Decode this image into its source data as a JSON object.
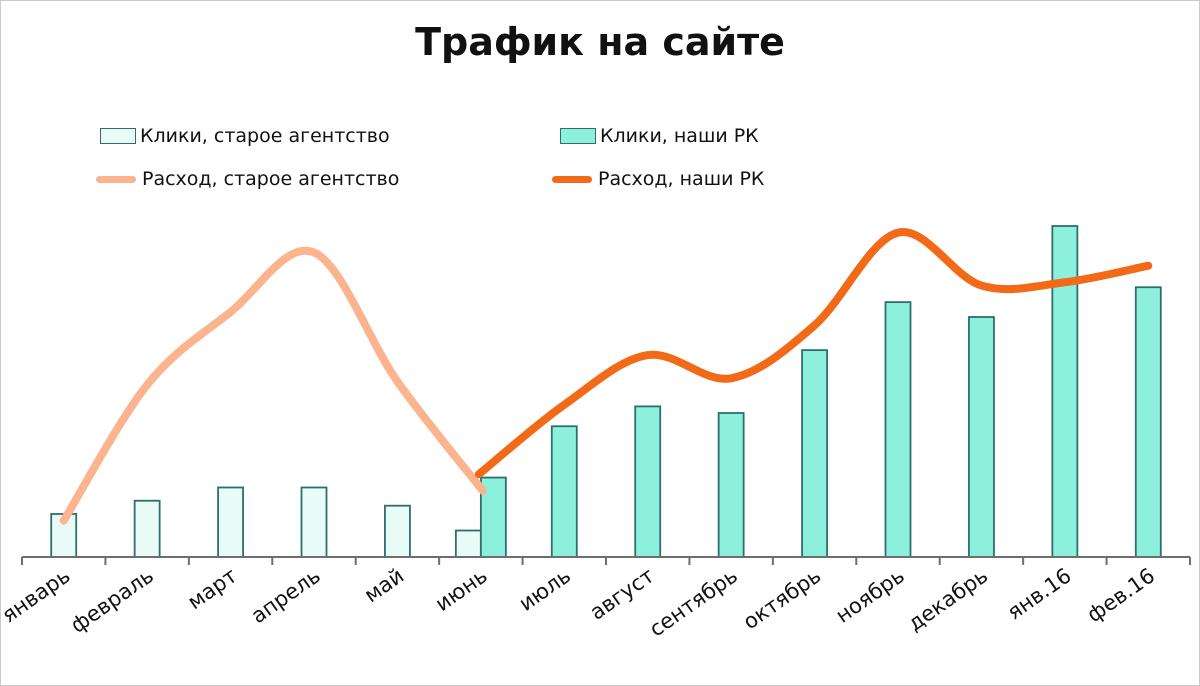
{
  "chart_data": {
    "type": "bar",
    "title": "Трафик на сайте",
    "xlabel": "",
    "ylabel": "",
    "categories": [
      "январь",
      "февраль",
      "март",
      "апрель",
      "май",
      "июнь",
      "июль",
      "август",
      "сентябрь",
      "октябрь",
      "ноябрь",
      "декабрь",
      "янв.16",
      "фев.16"
    ],
    "ylim": [
      0,
      100
    ],
    "grid": false,
    "legend_position": "top",
    "series": [
      {
        "name": "Клики, старое агентство",
        "kind": "bar",
        "color": "#e9fbf6",
        "border": "#2d6f6b",
        "values": [
          13,
          17,
          21,
          21,
          15.5,
          8,
          null,
          null,
          null,
          null,
          null,
          null,
          null,
          null
        ]
      },
      {
        "name": "Клики, наши РК",
        "kind": "bar",
        "color": "#8df0dc",
        "border": "#2d6f6b",
        "values": [
          null,
          null,
          null,
          null,
          null,
          24,
          39.5,
          45.5,
          43.5,
          62.5,
          77,
          72.5,
          100,
          81.5
        ]
      },
      {
        "name": "Расход, старое агентство",
        "kind": "line",
        "color": "#fbb48e",
        "values": [
          11,
          52,
          74,
          92,
          53,
          20,
          null,
          null,
          null,
          null,
          null,
          null,
          null,
          null
        ]
      },
      {
        "name": "Расход, наши РК",
        "kind": "line",
        "color": "#f26a17",
        "values": [
          null,
          null,
          null,
          null,
          null,
          25,
          46,
          61,
          54,
          70,
          98,
          82,
          83,
          88
        ]
      }
    ]
  }
}
